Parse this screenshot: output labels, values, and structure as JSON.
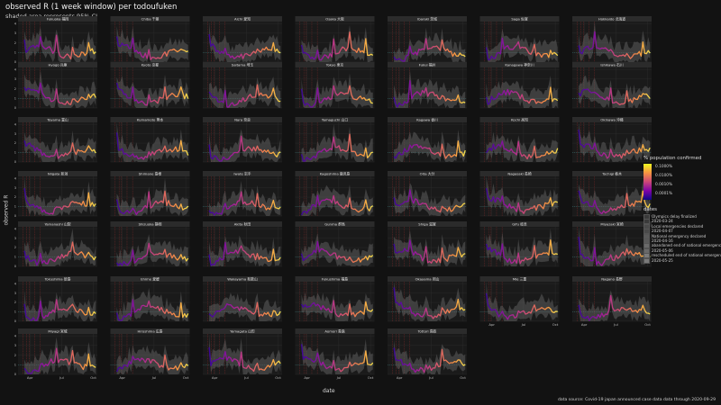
{
  "title": "observed R (1 week window) per todoufuken",
  "subtitle": "shaded area represents 95% CI",
  "ylabel": "observed R",
  "xlabel": "date",
  "source": "data source: Covid-19 japan announced case data  data through 2020-09-29",
  "legend_colour": {
    "title": "% population confirmed",
    "ticks": [
      "0.1000%",
      "0.0100%",
      "0.0010%",
      "0.0001%"
    ]
  },
  "legend_dates": {
    "title": "dates",
    "items": [
      {
        "text": "Olympics delay finalized",
        "color": "#3a3a3a"
      },
      {
        "text": "2020-03-24",
        "color": "#3a3a3a"
      },
      {
        "text": "Local emergencies declared",
        "color": "#4a4a4a"
      },
      {
        "text": "2020-04-07",
        "color": "#4a4a4a"
      },
      {
        "text": "National emergency declared",
        "color": "#5a5a5a"
      },
      {
        "text": "2020-04-16",
        "color": "#5a5a5a"
      },
      {
        "text": "abandoned end of national emergency",
        "color": "#6a6a6a"
      },
      {
        "text": "2020-05-06",
        "color": "#6a6a6a"
      },
      {
        "text": "rescheduled end of national emergency",
        "color": "#7a7a7a"
      },
      {
        "text": "2020-05-25",
        "color": "#7a7a7a"
      }
    ]
  },
  "chart_data": {
    "type": "line",
    "facets": [
      "Fukuoka 福岡",
      "Chiba 千葉",
      "Aichi 愛知",
      "Osaka 大阪",
      "Ibaraki 茨城",
      "Saga 佐賀",
      "Hokkaido 北海道",
      "Hyogo 兵庫",
      "Kyoto 京都",
      "Saitama 埼玉",
      "Tokyo 東京",
      "Fukui 福井",
      "Kanagawa 神奈川",
      "Ishikawa 石川",
      "Toyama 富山",
      "Kumamoto 熊本",
      "Nara 奈良",
      "Yamaguchi 山口",
      "Kagawa 香川",
      "Kochi 高知",
      "Okinawa 沖縄",
      "Niigata 新潟",
      "Shimane 島根",
      "Iwate 岩手",
      "Kagoshima 鹿児島",
      "Oita 大分",
      "Nagasaki 長崎",
      "Tochigi 栃木",
      "Yamanashi 山梨",
      "Shizuoka 静岡",
      "Akita 秋田",
      "Gunma 群馬",
      "Shiga 滋賀",
      "Gifu 岐阜",
      "Miyazaki 宮崎",
      "Tokushima 徳島",
      "Ehime 愛媛",
      "Wakayama 和歌山",
      "Fukushima 福島",
      "Okayama 岡山",
      "Mie 三重",
      "Nagano 長野",
      "Miyagi 宮城",
      "Hiroshima 広島",
      "Yamagata 山形",
      "Aomori 青森",
      "Tottori 鳥取"
    ],
    "x_ticks": [
      "Apr",
      "Jul",
      "Oct"
    ],
    "y_ticks": [
      "0",
      "1",
      "2",
      "3",
      "4"
    ],
    "ylim": [
      0,
      4.2
    ],
    "event_dates": [
      "2020-03-24",
      "2020-04-07",
      "2020-04-16",
      "2020-05-06",
      "2020-05-25"
    ],
    "grid": true,
    "legend_position": "right"
  }
}
